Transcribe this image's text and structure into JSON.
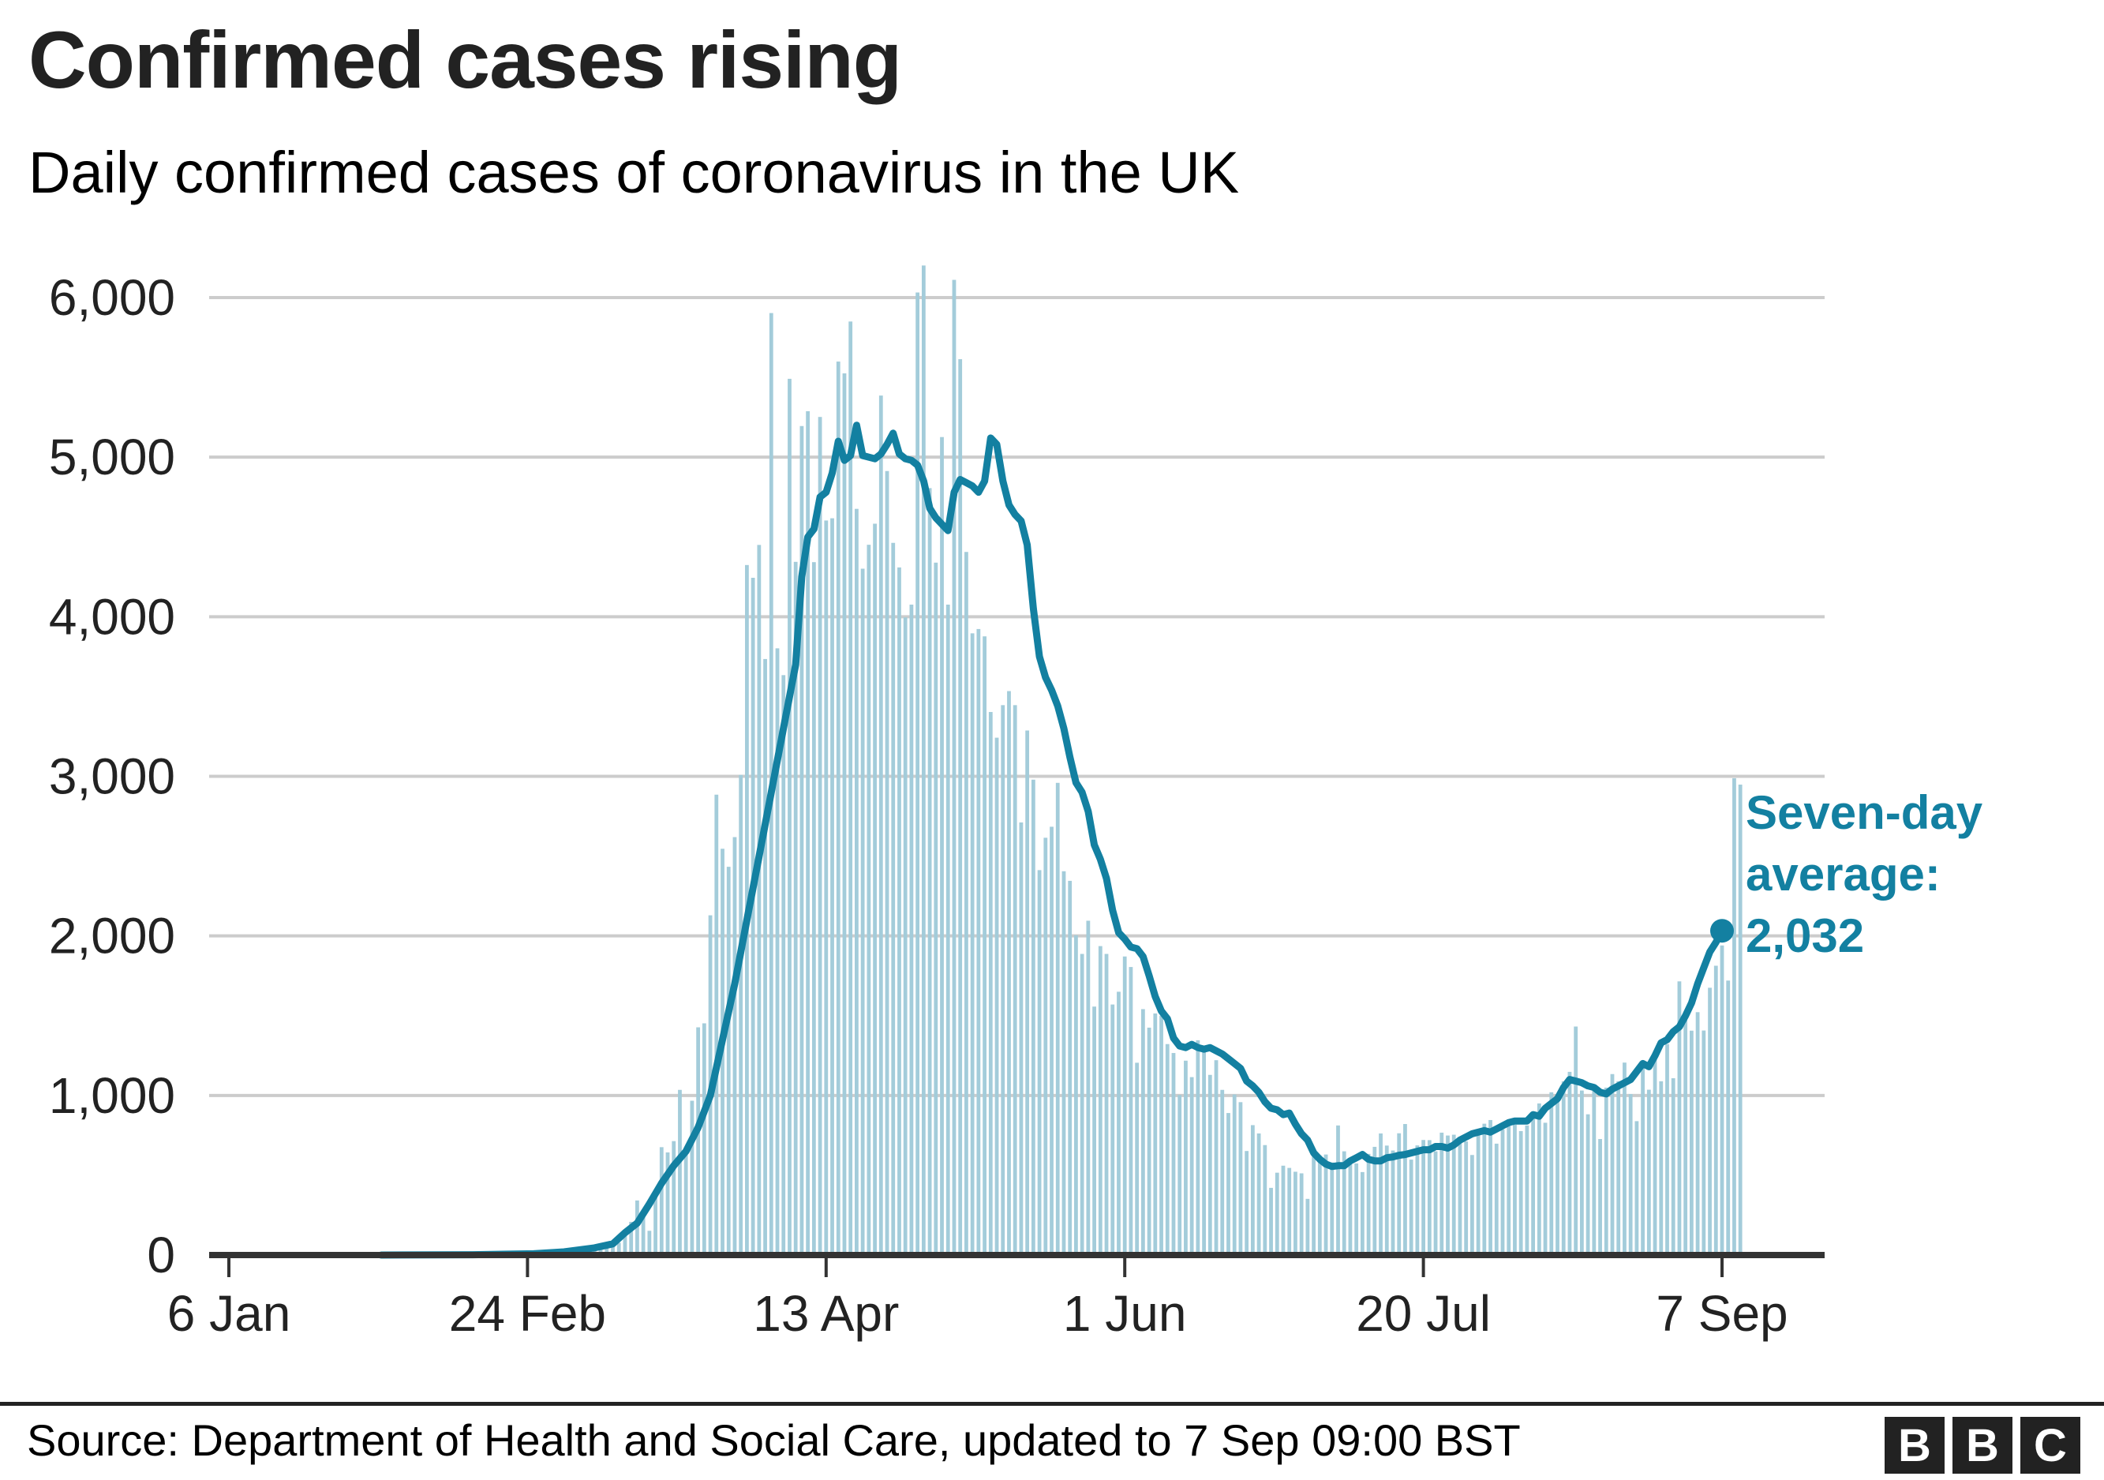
{
  "header": {
    "title": "Confirmed cases rising",
    "subtitle": "Daily confirmed cases of coronavirus in the UK"
  },
  "footer": {
    "source": "Source: Department of Health and Social Care, updated to 7 Sep 09:00 BST",
    "logo_letters": [
      "B",
      "B",
      "C"
    ]
  },
  "colors": {
    "bars": "#A3CCDA",
    "average_line": "#1380A1",
    "gridline": "#CCCCCC",
    "axis": "#333333",
    "text": "#222222"
  },
  "chart_data": {
    "type": "bar",
    "title": "Confirmed cases rising",
    "subtitle": "Daily confirmed cases of coronavirus in the UK",
    "xlabel": "",
    "ylabel": "",
    "ylim": [
      0,
      6000
    ],
    "yticks": [
      0,
      1000,
      2000,
      3000,
      4000,
      5000,
      6000
    ],
    "ytick_labels": [
      "0",
      "1,000",
      "2,000",
      "3,000",
      "4,000",
      "5,000",
      "6,000"
    ],
    "x_start_date": "6 Jan",
    "x_days_total": 245,
    "xticks_day_index": [
      0,
      49,
      98,
      147,
      196,
      245
    ],
    "xtick_labels": [
      "6 Jan",
      "24 Feb",
      "13 Apr",
      "1 Jun",
      "20 Jul",
      "7 Sep"
    ],
    "grid": true,
    "daily_series": {
      "name": "Daily confirmed cases",
      "start_day_index": 54,
      "values": [
        12,
        4,
        11,
        34,
        29,
        48,
        45,
        69,
        43,
        62,
        77,
        130,
        208,
        342,
        251,
        152,
        407,
        676,
        643,
        714,
        1035,
        665,
        967,
        1427,
        1452,
        2129,
        2885,
        2546,
        2433,
        2619,
        3009,
        4324,
        4244,
        4450,
        3735,
        5903,
        3802,
        3634,
        5491,
        4344,
        5195,
        5288,
        4342,
        5252,
        4603,
        4617,
        5599,
        5525,
        5850,
        4676,
        4301,
        4451,
        4583,
        5386,
        4913,
        4463,
        4309,
        3996,
        4076,
        6032,
        6201,
        4806,
        4339,
        5126,
        4076,
        6111,
        5614,
        4406,
        3896,
        3923,
        3877,
        3403,
        3242,
        3446,
        3534,
        3446,
        2711,
        3287,
        2979,
        2412,
        2615,
        2684,
        2959,
        2405,
        2345,
        2004,
        1887,
        2095,
        1557,
        1936,
        1887,
        1570,
        1650,
        1871,
        1805,
        1205,
        1541,
        1425,
        1514,
        1500,
        1322,
        1266,
        1003,
        1218,
        1115,
        1346,
        1295,
        1129,
        1221,
        1035,
        890,
        1006,
        958,
        652,
        814,
        762,
        689,
        421,
        516,
        560,
        546,
        522,
        512,
        352,
        631,
        624,
        630,
        580,
        812,
        650,
        577,
        574,
        520,
        634,
        678,
        762,
        686,
        655,
        763,
        821,
        598,
        687,
        721,
        720,
        650,
        767,
        749,
        754,
        739,
        712,
        627,
        762,
        823,
        846,
        698,
        787,
        850,
        817,
        777,
        812,
        875,
        950,
        829,
        1020,
        962,
        1089,
        1148,
        1432,
        1031,
        882,
        1033,
        727,
        1049,
        1134,
        1089,
        1206,
        1009,
        839,
        1182,
        1036,
        1276,
        1089,
        1322,
        1108,
        1715,
        1504,
        1406,
        1522,
        1407,
        1675,
        1813,
        1940,
        1720,
        2988,
        2948
      ]
    },
    "average_series": {
      "name": "Seven-day average",
      "start_day_index": 25,
      "points": [
        [
          25,
          0
        ],
        [
          40,
          2
        ],
        [
          50,
          8
        ],
        [
          55,
          20
        ],
        [
          60,
          45
        ],
        [
          63,
          70
        ],
        [
          65,
          140
        ],
        [
          67,
          200
        ],
        [
          69,
          320
        ],
        [
          71,
          450
        ],
        [
          73,
          560
        ],
        [
          75,
          650
        ],
        [
          77,
          800
        ],
        [
          79,
          1000
        ],
        [
          81,
          1350
        ],
        [
          83,
          1700
        ],
        [
          85,
          2100
        ],
        [
          87,
          2500
        ],
        [
          89,
          2900
        ],
        [
          91,
          3300
        ],
        [
          93,
          3700
        ],
        [
          94,
          4250
        ],
        [
          95,
          4500
        ],
        [
          96,
          4550
        ],
        [
          97,
          4750
        ],
        [
          98,
          4780
        ],
        [
          99,
          4900
        ],
        [
          100,
          5100
        ],
        [
          101,
          4980
        ],
        [
          102,
          5010
        ],
        [
          103,
          5200
        ],
        [
          104,
          5010
        ],
        [
          105,
          5000
        ],
        [
          106,
          4990
        ],
        [
          107,
          5020
        ],
        [
          108,
          5080
        ],
        [
          109,
          5150
        ],
        [
          110,
          5020
        ],
        [
          111,
          4990
        ],
        [
          112,
          4980
        ],
        [
          113,
          4950
        ],
        [
          114,
          4850
        ],
        [
          115,
          4680
        ],
        [
          116,
          4620
        ],
        [
          117,
          4580
        ],
        [
          118,
          4540
        ],
        [
          119,
          4780
        ],
        [
          120,
          4860
        ],
        [
          121,
          4840
        ],
        [
          122,
          4820
        ],
        [
          123,
          4780
        ],
        [
          124,
          4850
        ],
        [
          125,
          5120
        ],
        [
          126,
          5080
        ],
        [
          127,
          4850
        ],
        [
          128,
          4700
        ],
        [
          129,
          4640
        ],
        [
          130,
          4600
        ],
        [
          131,
          4450
        ],
        [
          132,
          4050
        ],
        [
          133,
          3750
        ],
        [
          134,
          3620
        ],
        [
          135,
          3540
        ],
        [
          136,
          3440
        ],
        [
          137,
          3300
        ],
        [
          138,
          3120
        ],
        [
          139,
          2960
        ],
        [
          140,
          2900
        ],
        [
          141,
          2780
        ],
        [
          142,
          2570
        ],
        [
          143,
          2480
        ],
        [
          144,
          2360
        ],
        [
          145,
          2160
        ],
        [
          146,
          2020
        ],
        [
          147,
          1980
        ],
        [
          148,
          1930
        ],
        [
          149,
          1920
        ],
        [
          150,
          1870
        ],
        [
          151,
          1750
        ],
        [
          152,
          1620
        ],
        [
          153,
          1530
        ],
        [
          154,
          1480
        ],
        [
          155,
          1360
        ],
        [
          156,
          1310
        ],
        [
          157,
          1300
        ],
        [
          158,
          1320
        ],
        [
          159,
          1300
        ],
        [
          160,
          1290
        ],
        [
          161,
          1300
        ],
        [
          162,
          1280
        ],
        [
          163,
          1260
        ],
        [
          164,
          1230
        ],
        [
          165,
          1200
        ],
        [
          166,
          1170
        ],
        [
          167,
          1090
        ],
        [
          168,
          1060
        ],
        [
          169,
          1020
        ],
        [
          170,
          960
        ],
        [
          171,
          920
        ],
        [
          172,
          910
        ],
        [
          173,
          880
        ],
        [
          174,
          890
        ],
        [
          175,
          820
        ],
        [
          176,
          760
        ],
        [
          177,
          720
        ],
        [
          178,
          640
        ],
        [
          179,
          600
        ],
        [
          180,
          570
        ],
        [
          181,
          555
        ],
        [
          182,
          560
        ],
        [
          183,
          560
        ],
        [
          184,
          590
        ],
        [
          185,
          610
        ],
        [
          186,
          630
        ],
        [
          187,
          600
        ],
        [
          188,
          590
        ],
        [
          189,
          590
        ],
        [
          190,
          610
        ],
        [
          191,
          615
        ],
        [
          192,
          625
        ],
        [
          193,
          630
        ],
        [
          194,
          640
        ],
        [
          195,
          650
        ],
        [
          196,
          660
        ],
        [
          197,
          660
        ],
        [
          198,
          680
        ],
        [
          199,
          680
        ],
        [
          200,
          670
        ],
        [
          201,
          690
        ],
        [
          202,
          720
        ],
        [
          203,
          740
        ],
        [
          204,
          760
        ],
        [
          205,
          770
        ],
        [
          206,
          780
        ],
        [
          207,
          770
        ],
        [
          208,
          790
        ],
        [
          209,
          810
        ],
        [
          210,
          830
        ],
        [
          211,
          840
        ],
        [
          212,
          840
        ],
        [
          213,
          840
        ],
        [
          214,
          880
        ],
        [
          215,
          870
        ],
        [
          216,
          920
        ],
        [
          217,
          950
        ],
        [
          218,
          980
        ],
        [
          219,
          1050
        ],
        [
          220,
          1100
        ],
        [
          221,
          1090
        ],
        [
          222,
          1080
        ],
        [
          223,
          1060
        ],
        [
          224,
          1050
        ],
        [
          225,
          1020
        ],
        [
          226,
          1010
        ],
        [
          227,
          1040
        ],
        [
          228,
          1060
        ],
        [
          229,
          1080
        ],
        [
          230,
          1100
        ],
        [
          231,
          1150
        ],
        [
          232,
          1200
        ],
        [
          233,
          1180
        ],
        [
          234,
          1250
        ],
        [
          235,
          1330
        ],
        [
          236,
          1350
        ],
        [
          237,
          1400
        ],
        [
          238,
          1430
        ],
        [
          239,
          1500
        ],
        [
          240,
          1580
        ],
        [
          241,
          1700
        ],
        [
          242,
          1800
        ],
        [
          243,
          1900
        ],
        [
          244,
          1960
        ],
        [
          245,
          2032
        ]
      ],
      "final_value": 2032
    },
    "annotation": {
      "lines": [
        "Seven-day",
        "average:",
        "2,032"
      ],
      "day_index": 245,
      "value": 2032
    }
  }
}
